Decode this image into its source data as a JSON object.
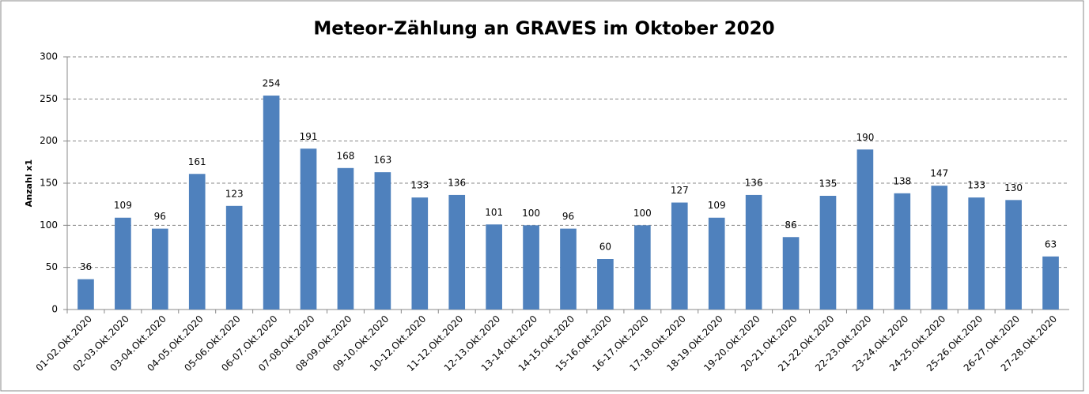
{
  "chart_data": {
    "type": "bar",
    "title": "Meteor-Zählung an GRAVES im Oktober 2020",
    "y_label": "Anzahl x1",
    "categories": [
      "01-02.Okt.2020",
      "02-03.Okt.2020",
      "03-04.Okt.2020",
      "04-05.Okt.2020",
      "05-06.Okt.2020",
      "06-07.Okt.2020",
      "07-08.Okt.2020",
      "08-09.Okt.2020",
      "09-10.Okt.2020",
      "10-12.Okt.2020",
      "11-12.Okt.2020",
      "12-13.Okt.2020",
      "13-14.Okt.2020",
      "14-15.Okt.2020",
      "15-16.Okt.2020",
      "16-17.Okt.2020",
      "17-18.Okt.2020",
      "18-19.Okt.2020",
      "19-20.Okt.2020",
      "20-21.Okt.2020",
      "21-22.Okt.2020",
      "22-23.Okt.2020",
      "23-24.Okt.2020",
      "24-25.Okt.2020",
      "25-26.Okt.2020",
      "26-27.Okt.2020",
      "27-28.Okt.2020"
    ],
    "values": [
      36,
      109,
      96,
      161,
      123,
      254,
      191,
      168,
      163,
      133,
      136,
      101,
      100,
      96,
      60,
      100,
      127,
      109,
      136,
      86,
      135,
      190,
      138,
      147,
      133,
      130,
      63
    ],
    "color": "#4f81bd",
    "ylim": [
      0,
      300
    ],
    "yticks": [
      0,
      50,
      100,
      150,
      200,
      250,
      300
    ],
    "grid": true
  }
}
